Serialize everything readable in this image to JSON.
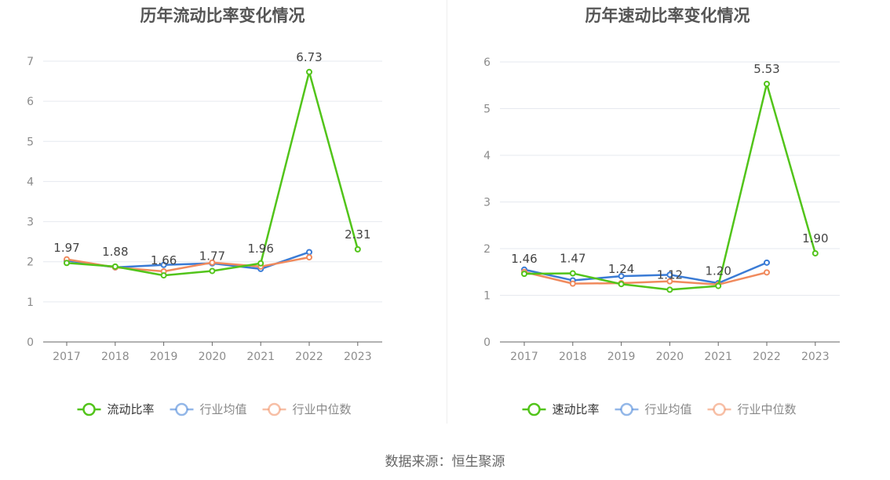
{
  "footer": {
    "source": "数据来源：恒生聚源"
  },
  "colors": {
    "company": "#52c41a",
    "industry_avg": "#3a7bd5",
    "industry_median": "#f08a5d",
    "grid": "#e6e9ef",
    "axis": "#666666",
    "tick_text": "#8c8c8c",
    "label_text": "#444444"
  },
  "chart_data": [
    {
      "type": "line",
      "title": "历年流动比率变化情况",
      "categories": [
        "2017",
        "2018",
        "2019",
        "2020",
        "2021",
        "2022",
        "2023"
      ],
      "ylim": [
        0,
        7
      ],
      "yticks": [
        0,
        1,
        2,
        3,
        4,
        5,
        6,
        7
      ],
      "grid": true,
      "legend_position": "bottom",
      "series": [
        {
          "name": "流动比率",
          "key": "company",
          "values": [
            1.97,
            1.88,
            1.66,
            1.77,
            1.96,
            6.73,
            2.31
          ],
          "labels": [
            "1.97",
            "1.88",
            "1.66",
            "1.77",
            "1.96",
            "6.73",
            "2.31"
          ]
        },
        {
          "name": "行业均值",
          "key": "industry_avg",
          "values": [
            2.03,
            1.86,
            1.92,
            1.96,
            1.82,
            2.24,
            null
          ]
        },
        {
          "name": "行业中位数",
          "key": "industry_median",
          "values": [
            2.06,
            1.86,
            1.76,
            1.98,
            1.88,
            2.11,
            null
          ]
        }
      ]
    },
    {
      "type": "line",
      "title": "历年速动比率变化情况",
      "categories": [
        "2017",
        "2018",
        "2019",
        "2020",
        "2021",
        "2022",
        "2023"
      ],
      "ylim": [
        0,
        6
      ],
      "yticks": [
        0,
        1,
        2,
        3,
        4,
        5,
        6
      ],
      "grid": true,
      "legend_position": "bottom",
      "series": [
        {
          "name": "速动比率",
          "key": "company",
          "values": [
            1.46,
            1.47,
            1.24,
            1.12,
            1.2,
            5.53,
            1.9
          ],
          "labels": [
            "1.46",
            "1.47",
            "1.24",
            "1.12",
            "1.20",
            "5.53",
            "1.90"
          ]
        },
        {
          "name": "行业均值",
          "key": "industry_avg",
          "values": [
            1.55,
            1.32,
            1.41,
            1.44,
            1.26,
            1.7,
            null
          ]
        },
        {
          "name": "行业中位数",
          "key": "industry_median",
          "values": [
            1.5,
            1.25,
            1.26,
            1.3,
            1.23,
            1.49,
            null
          ]
        }
      ]
    }
  ]
}
